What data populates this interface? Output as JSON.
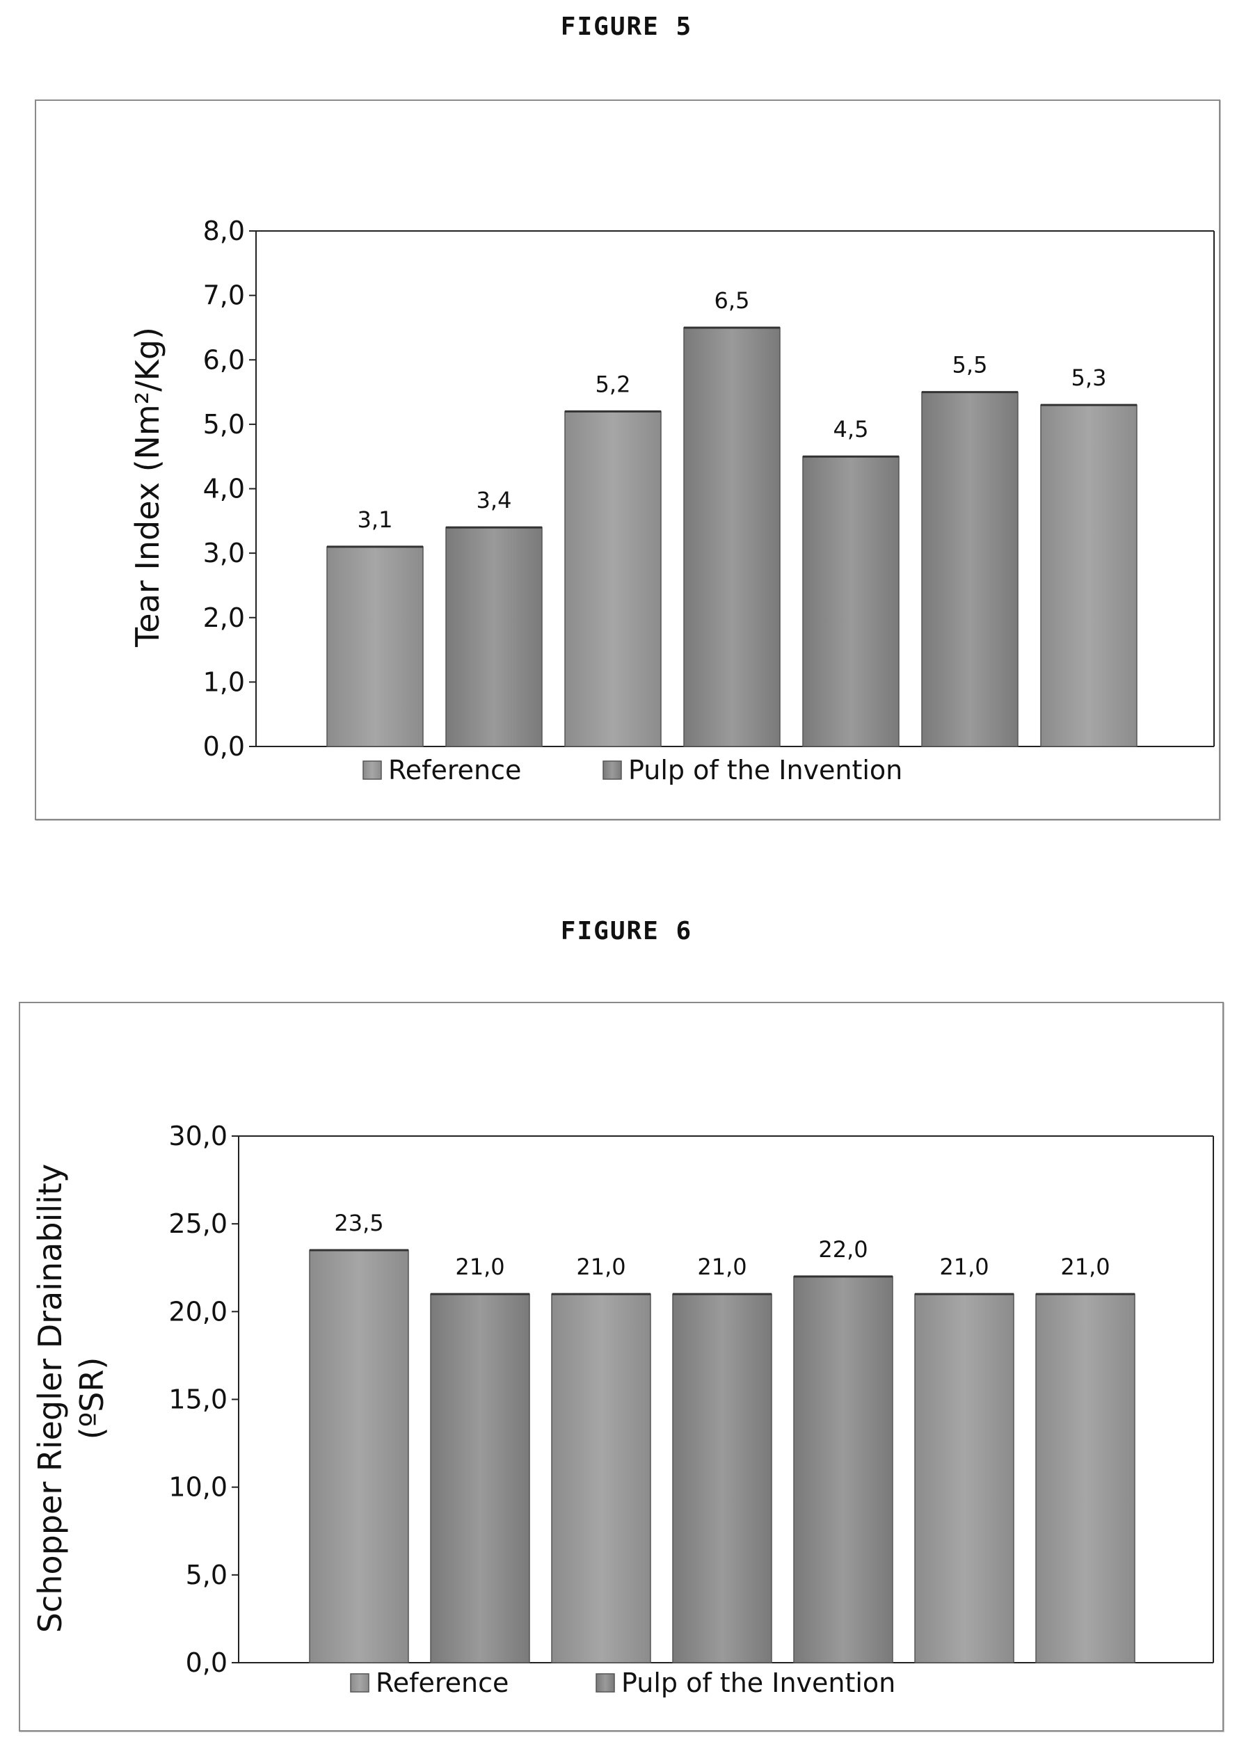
{
  "page": {
    "figure5_title": "FIGURE 5",
    "figure6_title": "FIGURE 6"
  },
  "colors": {
    "reference": "#8c8c8c",
    "invention": "#7a7a7a",
    "reference_light": "#a6a6a6",
    "invention_light": "#9a9a9a"
  },
  "chart_data": [
    {
      "type": "bar",
      "ylabel": "Tear Index (Nm²/Kg)",
      "ylim": [
        0,
        8
      ],
      "yticks": [
        0,
        1,
        2,
        3,
        4,
        5,
        6,
        7,
        8
      ],
      "yticklabels": [
        "0,0",
        "1,0",
        "2,0",
        "3,0",
        "4,0",
        "5,0",
        "6,0",
        "7,0",
        "8,0"
      ],
      "values": [
        3.1,
        3.4,
        5.2,
        6.5,
        4.5,
        5.5,
        5.3
      ],
      "value_labels": [
        "3,1",
        "3,4",
        "5,2",
        "6,5",
        "4,5",
        "5,5",
        "5,3"
      ],
      "bar_series": [
        0,
        1,
        0,
        1,
        1,
        1,
        0
      ],
      "series": [
        {
          "name": "Reference"
        },
        {
          "name": "Pulp of the Invention"
        }
      ],
      "legend": "bottom",
      "grid": false
    },
    {
      "type": "bar",
      "ylabel_lines": [
        "Schopper Riegler Drainability",
        "(ºSR)"
      ],
      "ylim": [
        0,
        30
      ],
      "yticks": [
        0,
        5,
        10,
        15,
        20,
        25,
        30
      ],
      "yticklabels": [
        "0,0",
        "5,0",
        "10,0",
        "15,0",
        "20,0",
        "25,0",
        "30,0"
      ],
      "values": [
        23.5,
        21.0,
        21.0,
        21.0,
        22.0,
        21.0,
        21.0
      ],
      "value_labels": [
        "23,5",
        "21,0",
        "21,0",
        "21,0",
        "22,0",
        "21,0",
        "21,0"
      ],
      "bar_series": [
        0,
        1,
        0,
        1,
        1,
        0,
        0
      ],
      "series": [
        {
          "name": "Reference"
        },
        {
          "name": "Pulp of the Invention"
        }
      ],
      "legend": "bottom",
      "grid": false
    }
  ]
}
